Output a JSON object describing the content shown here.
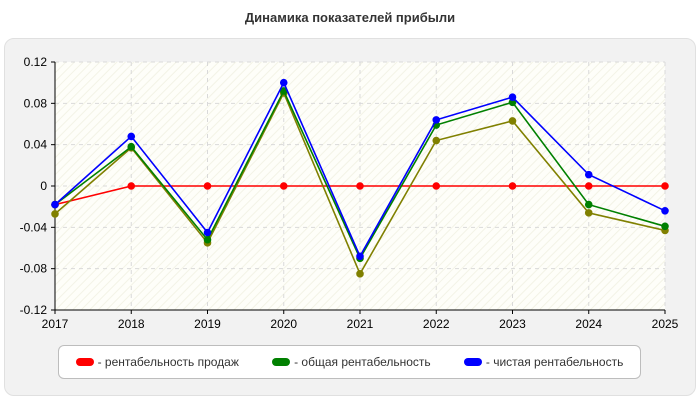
{
  "chart_data": {
    "type": "line",
    "title": "Динамика показателей прибыли",
    "x": [
      "2017",
      "2018",
      "2019",
      "2020",
      "2021",
      "2022",
      "2023",
      "2024",
      "2025"
    ],
    "ylim": [
      -0.12,
      0.12
    ],
    "yticks": [
      0.12,
      0.08,
      0.04,
      0,
      -0.04,
      -0.08,
      -0.12
    ],
    "ytick_labels": [
      "0.12",
      "0.08",
      "0.04",
      "0",
      "-0.04",
      "-0.08",
      "-0.12"
    ],
    "grid": true,
    "legend_position": "bottom",
    "series": [
      {
        "name": "- рентабельность продаж",
        "color": "#ff0000",
        "values": [
          -0.018,
          0.0,
          0.0,
          0.0,
          0.0,
          0.0,
          0.0,
          0.0,
          0.0
        ]
      },
      {
        "name": "- общая рентабельность",
        "color": "#008000",
        "values": [
          -0.018,
          0.038,
          -0.052,
          0.092,
          -0.07,
          0.059,
          0.081,
          -0.018,
          -0.039
        ]
      },
      {
        "name": "- чистая рентабельность",
        "color": "#0000ff",
        "values": [
          -0.018,
          0.048,
          -0.045,
          0.1,
          -0.068,
          0.064,
          0.086,
          0.011,
          -0.024
        ]
      },
      {
        "name": "",
        "color": "#808000",
        "values": [
          -0.027,
          0.037,
          -0.055,
          0.09,
          -0.085,
          0.044,
          0.063,
          -0.026,
          -0.043
        ]
      }
    ]
  }
}
